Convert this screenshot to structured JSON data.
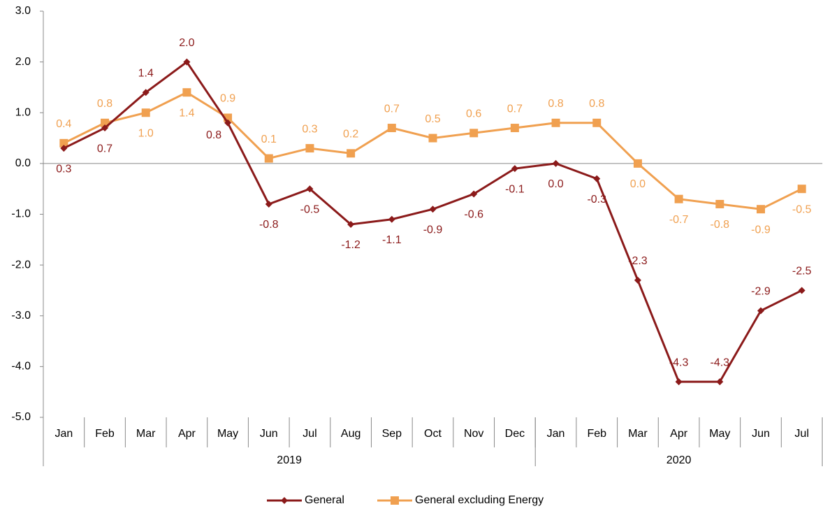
{
  "chart_data": {
    "type": "line",
    "categories": [
      "Jan",
      "Feb",
      "Mar",
      "Apr",
      "May",
      "Jun",
      "Jul",
      "Aug",
      "Sep",
      "Oct",
      "Nov",
      "Dec",
      "Jan",
      "Feb",
      "Mar",
      "Apr",
      "May",
      "Jun",
      "Jul"
    ],
    "category_groups": [
      {
        "name": "2019",
        "count": 12
      },
      {
        "name": "2020",
        "count": 7
      }
    ],
    "series": [
      {
        "name": "General",
        "color": "#8b1a1a",
        "marker": "diamond",
        "values": [
          0.3,
          0.7,
          1.4,
          2.0,
          0.8,
          -0.8,
          -0.5,
          -1.2,
          -1.1,
          -0.9,
          -0.6,
          -0.1,
          0.0,
          -0.3,
          -2.3,
          -4.3,
          -4.3,
          -2.9,
          -2.5
        ],
        "value_labels": [
          "0.3",
          "0.7",
          "1.4",
          "2.0",
          "0.8",
          "-0.8",
          "-0.5",
          "-1.2",
          "-1.1",
          "-0.9",
          "-0.6",
          "-0.1",
          "0.0",
          "-0.3",
          "-2.3",
          "-4.3",
          "-4.3",
          "-2.9",
          "-2.5"
        ]
      },
      {
        "name": "General excluding Energy",
        "color": "#f0a050",
        "marker": "square",
        "values": [
          0.4,
          0.8,
          1.0,
          1.4,
          0.9,
          0.1,
          0.3,
          0.2,
          0.7,
          0.5,
          0.6,
          0.7,
          0.8,
          0.8,
          0.0,
          -0.7,
          -0.8,
          -0.9,
          -0.5
        ],
        "value_labels": [
          "0.4",
          "0.8",
          "1.0",
          "1.4",
          "0.9",
          "0.1",
          "0.3",
          "0.2",
          "0.7",
          "0.5",
          "0.6",
          "0.7",
          "0.8",
          "0.8",
          "0.0",
          "-0.7",
          "-0.8",
          "-0.9",
          "-0.5"
        ]
      }
    ],
    "ylim": [
      -5,
      3
    ],
    "yticks": [
      {
        "value": -5,
        "label": "-5.0"
      },
      {
        "value": -4,
        "label": "-4.0"
      },
      {
        "value": -3,
        "label": "-3.0"
      },
      {
        "value": -2,
        "label": "-2.0"
      },
      {
        "value": -1,
        "label": "-1.0"
      },
      {
        "value": 0,
        "label": "0.0"
      },
      {
        "value": 1,
        "label": "1.0"
      },
      {
        "value": 2,
        "label": "2.0"
      },
      {
        "value": 3,
        "label": "3.0"
      }
    ],
    "legend": "bottom"
  }
}
